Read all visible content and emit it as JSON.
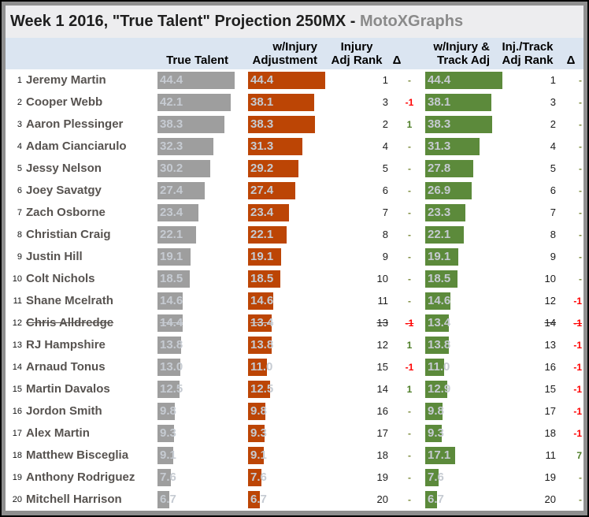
{
  "title": {
    "main": "Week 1 2016, \"True Talent\" Projection 250MX - ",
    "brand": "MotoXGraphs"
  },
  "header": {
    "true_talent": "True Talent",
    "injury_line1": "w/Injury",
    "injury_line2": "Adjustment",
    "injury_rank_line1": "Injury",
    "injury_rank_line2": "Adj Rank",
    "delta1": "Δ",
    "track_line1": "w/Injury &",
    "track_line2": "Track Adj",
    "track_rank_line1": "Inj./Track",
    "track_rank_line2": "Adj Rank",
    "delta2": "Δ"
  },
  "colors": {
    "true_talent_bar": "#9E9E9E",
    "injury_bar": "#BC4505",
    "track_bar": "#5C8A3B",
    "bar_value_text": "#C6CBD2",
    "delta_none": "#7E8C3E",
    "delta_positive": "#4C7D26",
    "delta_negative": "#FF0000",
    "header_band": "#DBE5F1",
    "brand_text": "#8A8A8A"
  },
  "chart_data": {
    "type": "bar",
    "orientation": "horizontal",
    "title": "Week 1 2016, \"True Talent\" Projection 250MX - MotoXGraphs",
    "value_axis_hidden": true,
    "xlim": [
      0,
      45
    ],
    "series": [
      {
        "name": "True Talent",
        "color": "#9E9E9E"
      },
      {
        "name": "w/Injury Adjustment",
        "color": "#BC4505"
      },
      {
        "name": "w/Injury & Track Adj",
        "color": "#5C8A3B"
      }
    ],
    "rows": [
      {
        "row": 1,
        "name": "Jeremy Martin",
        "true_talent": 44.4,
        "injury_adj": 44.4,
        "injury_rank": "1",
        "injury_delta": "-",
        "track_adj": 44.4,
        "track_rank": "1",
        "track_delta": "-",
        "struck": false
      },
      {
        "row": 2,
        "name": "Cooper Webb",
        "true_talent": 42.1,
        "injury_adj": 38.1,
        "injury_rank": "3",
        "injury_delta": "-1",
        "track_adj": 38.1,
        "track_rank": "3",
        "track_delta": "-",
        "struck": false
      },
      {
        "row": 3,
        "name": "Aaron Plessinger",
        "true_talent": 38.3,
        "injury_adj": 38.3,
        "injury_rank": "2",
        "injury_delta": "1",
        "track_adj": 38.3,
        "track_rank": "2",
        "track_delta": "-",
        "struck": false
      },
      {
        "row": 4,
        "name": "Adam Cianciarulo",
        "true_talent": 32.3,
        "injury_adj": 31.3,
        "injury_rank": "4",
        "injury_delta": "-",
        "track_adj": 31.3,
        "track_rank": "4",
        "track_delta": "-",
        "struck": false
      },
      {
        "row": 5,
        "name": "Jessy Nelson",
        "true_talent": 30.2,
        "injury_adj": 29.2,
        "injury_rank": "5",
        "injury_delta": "-",
        "track_adj": 27.8,
        "track_rank": "5",
        "track_delta": "-",
        "struck": false
      },
      {
        "row": 6,
        "name": "Joey Savatgy",
        "true_talent": 27.4,
        "injury_adj": 27.4,
        "injury_rank": "6",
        "injury_delta": "-",
        "track_adj": 26.9,
        "track_rank": "6",
        "track_delta": "-",
        "struck": false
      },
      {
        "row": 7,
        "name": "Zach Osborne",
        "true_talent": 23.4,
        "injury_adj": 23.4,
        "injury_rank": "7",
        "injury_delta": "-",
        "track_adj": 23.3,
        "track_rank": "7",
        "track_delta": "-",
        "struck": false
      },
      {
        "row": 8,
        "name": "Christian Craig",
        "true_talent": 22.1,
        "injury_adj": 22.1,
        "injury_rank": "8",
        "injury_delta": "-",
        "track_adj": 22.1,
        "track_rank": "8",
        "track_delta": "-",
        "struck": false
      },
      {
        "row": 9,
        "name": "Justin Hill",
        "true_talent": 19.1,
        "injury_adj": 19.1,
        "injury_rank": "9",
        "injury_delta": "-",
        "track_adj": 19.1,
        "track_rank": "9",
        "track_delta": "-",
        "struck": false
      },
      {
        "row": 10,
        "name": "Colt Nichols",
        "true_talent": 18.5,
        "injury_adj": 18.5,
        "injury_rank": "10",
        "injury_delta": "-",
        "track_adj": 18.5,
        "track_rank": "10",
        "track_delta": "-",
        "struck": false
      },
      {
        "row": 11,
        "name": "Shane Mcelrath",
        "true_talent": 14.6,
        "injury_adj": 14.6,
        "injury_rank": "11",
        "injury_delta": "-",
        "track_adj": 14.6,
        "track_rank": "12",
        "track_delta": "-1",
        "struck": false
      },
      {
        "row": 12,
        "name": "Chris Alldredge",
        "true_talent": 14.4,
        "injury_adj": 13.4,
        "injury_rank": "13",
        "injury_delta": "-1",
        "track_adj": 13.4,
        "track_rank": "14",
        "track_delta": "-1",
        "struck": true
      },
      {
        "row": 13,
        "name": "RJ Hampshire",
        "true_talent": 13.8,
        "injury_adj": 13.8,
        "injury_rank": "12",
        "injury_delta": "1",
        "track_adj": 13.8,
        "track_rank": "13",
        "track_delta": "-1",
        "struck": false
      },
      {
        "row": 14,
        "name": "Arnaud Tonus",
        "true_talent": 13.0,
        "injury_adj": 11.0,
        "injury_rank": "15",
        "injury_delta": "-1",
        "track_adj": 11.0,
        "track_rank": "16",
        "track_delta": "-1",
        "struck": false
      },
      {
        "row": 15,
        "name": "Martin Davalos",
        "true_talent": 12.5,
        "injury_adj": 12.5,
        "injury_rank": "14",
        "injury_delta": "1",
        "track_adj": 12.9,
        "track_rank": "15",
        "track_delta": "-1",
        "struck": false
      },
      {
        "row": 16,
        "name": "Jordon Smith",
        "true_talent": 9.8,
        "injury_adj": 9.8,
        "injury_rank": "16",
        "injury_delta": "-",
        "track_adj": 9.8,
        "track_rank": "17",
        "track_delta": "-1",
        "struck": false
      },
      {
        "row": 17,
        "name": "Alex Martin",
        "true_talent": 9.3,
        "injury_adj": 9.3,
        "injury_rank": "17",
        "injury_delta": "-",
        "track_adj": 9.3,
        "track_rank": "18",
        "track_delta": "-1",
        "struck": false
      },
      {
        "row": 18,
        "name": "Matthew Bisceglia",
        "true_talent": 9.1,
        "injury_adj": 9.1,
        "injury_rank": "18",
        "injury_delta": "-",
        "track_adj": 17.1,
        "track_rank": "11",
        "track_delta": "7",
        "struck": false
      },
      {
        "row": 19,
        "name": "Anthony Rodriguez",
        "true_talent": 7.6,
        "injury_adj": 7.6,
        "injury_rank": "19",
        "injury_delta": "-",
        "track_adj": 7.6,
        "track_rank": "19",
        "track_delta": "-",
        "struck": false
      },
      {
        "row": 20,
        "name": "Mitchell Harrison",
        "true_talent": 6.7,
        "injury_adj": 6.7,
        "injury_rank": "20",
        "injury_delta": "-",
        "track_adj": 6.7,
        "track_rank": "20",
        "track_delta": "-",
        "struck": false
      }
    ]
  }
}
